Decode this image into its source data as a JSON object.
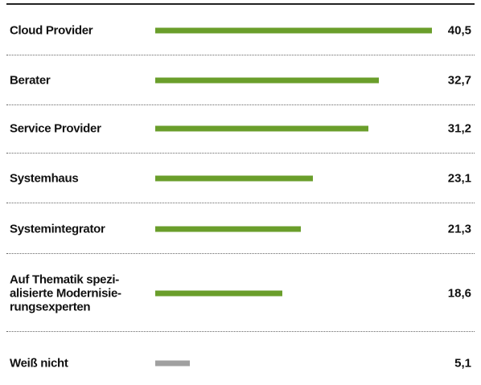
{
  "chart_data": {
    "type": "bar",
    "orientation": "horizontal",
    "categories": [
      "Cloud Provider",
      "Berater",
      "Service Provider",
      "Systemhaus",
      "Systemintegrator",
      "Auf Thematik spezi-\nalisierte Modernisie-\nrungsexperten",
      "Weiß nicht"
    ],
    "values": [
      40.5,
      32.7,
      31.2,
      23.1,
      21.3,
      18.6,
      5.1
    ],
    "value_labels": [
      "40,5",
      "32,7",
      "31,2",
      "23,1",
      "21,3",
      "18,6",
      "5,1"
    ],
    "colors": [
      "#6a9e2b",
      "#6a9e2b",
      "#6a9e2b",
      "#6a9e2b",
      "#6a9e2b",
      "#6a9e2b",
      "#a0a0a0"
    ]
  }
}
